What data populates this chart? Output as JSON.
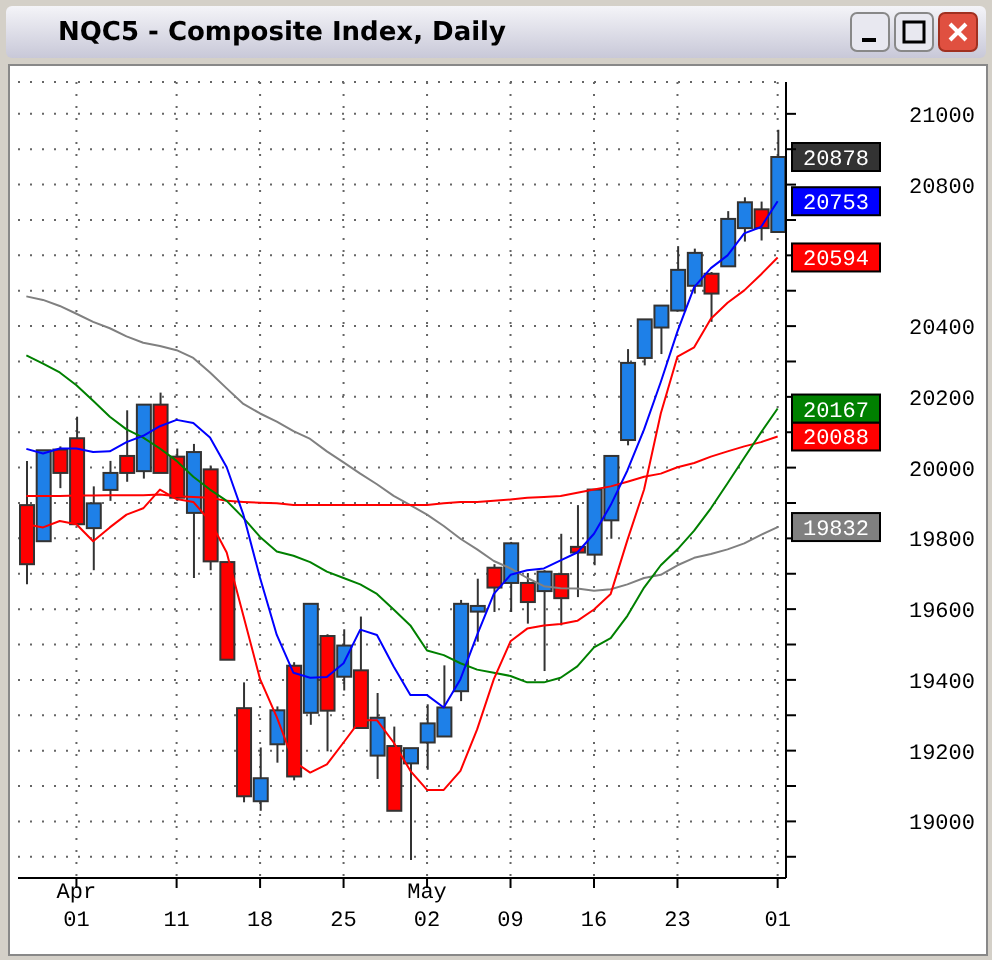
{
  "chart_data": {
    "type": "candlestick",
    "title": "NQC5 - Composite Index, Daily",
    "categories": [
      null,
      null,
      null,
      "Apr\n01",
      null,
      null,
      null,
      null,
      null,
      "11",
      null,
      null,
      null,
      null,
      "18",
      null,
      null,
      null,
      null,
      "25",
      null,
      null,
      null,
      null,
      "May\n02",
      null,
      null,
      null,
      null,
      "09",
      null,
      null,
      null,
      null,
      "16",
      null,
      null,
      null,
      null,
      "23",
      null,
      null,
      null,
      null,
      null,
      "01"
    ],
    "ohlc": [
      [
        19894,
        20019,
        19670,
        19727
      ],
      [
        19792,
        20049,
        19792,
        20049
      ],
      [
        20051,
        20060,
        19942,
        19985
      ],
      [
        20083,
        20144,
        19840,
        19840
      ],
      [
        19829,
        19947,
        19710,
        19899
      ],
      [
        19937,
        20019,
        19906,
        19985
      ],
      [
        20033,
        20162,
        19960,
        19985
      ],
      [
        19990,
        20178,
        19969,
        20178
      ],
      [
        20178,
        20212,
        19985,
        19985
      ],
      [
        20031,
        20054,
        19906,
        19915
      ],
      [
        19872,
        20067,
        19688,
        20044
      ],
      [
        19995,
        20006,
        19710,
        19735
      ],
      [
        19733,
        19733,
        19457,
        19457
      ],
      [
        19320,
        19393,
        19054,
        19071
      ],
      [
        19057,
        19209,
        19030,
        19122
      ],
      [
        19218,
        19325,
        19166,
        19314
      ],
      [
        19440,
        19450,
        19116,
        19127
      ],
      [
        19307,
        19615,
        19273,
        19615
      ],
      [
        19524,
        19529,
        19198,
        19313
      ],
      [
        19409,
        19543,
        19370,
        19497
      ],
      [
        19427,
        19579,
        19264,
        19264
      ],
      [
        19186,
        19363,
        19120,
        19293
      ],
      [
        19213,
        19268,
        19030,
        19030
      ],
      [
        19164,
        19207,
        18891,
        19207
      ],
      [
        19223,
        19331,
        19146,
        19277
      ],
      [
        19240,
        19441,
        19240,
        19322
      ],
      [
        19368,
        19626,
        19340,
        19615
      ],
      [
        19593,
        19686,
        19508,
        19609
      ],
      [
        19717,
        19727,
        19592,
        19661
      ],
      [
        19674,
        19790,
        19592,
        19786
      ],
      [
        19674,
        19702,
        19559,
        19620
      ],
      [
        19651,
        19710,
        19425,
        19706
      ],
      [
        19699,
        19813,
        19554,
        19631
      ],
      [
        19776,
        19894,
        19634,
        19760
      ],
      [
        19754,
        19938,
        19724,
        19938
      ],
      [
        19851,
        20033,
        19799,
        20033
      ],
      [
        20078,
        20335,
        20063,
        20296
      ],
      [
        20310,
        20419,
        20289,
        20419
      ],
      [
        20396,
        20458,
        20321,
        20458
      ],
      [
        20444,
        20626,
        20444,
        20559
      ],
      [
        20514,
        20619,
        20492,
        20607
      ],
      [
        20548,
        20553,
        20412,
        20492
      ],
      [
        20569,
        20725,
        20569,
        20703
      ],
      [
        20677,
        20764,
        20639,
        20750
      ],
      [
        20730,
        20752,
        20642,
        20677
      ],
      [
        20666,
        20955,
        20666,
        20878
      ]
    ],
    "colors": [
      "#ff0000",
      "#1e80e8",
      "#ff0000",
      "#ff0000",
      "#1e80e8",
      "#1e80e8",
      "#ff0000",
      "#1e80e8",
      "#ff0000",
      "#ff0000",
      "#1e80e8",
      "#ff0000",
      "#ff0000",
      "#ff0000",
      "#1e80e8",
      "#1e80e8",
      "#ff0000",
      "#1e80e8",
      "#ff0000",
      "#1e80e8",
      "#ff0000",
      "#1e80e8",
      "#ff0000",
      "#1e80e8",
      "#1e80e8",
      "#1e80e8",
      "#1e80e8",
      "#1e80e8",
      "#ff0000",
      "#1e80e8",
      "#ff0000",
      "#1e80e8",
      "#ff0000",
      "#ff0000",
      "#1e80e8",
      "#1e80e8",
      "#1e80e8",
      "#1e80e8",
      "#1e80e8",
      "#1e80e8",
      "#1e80e8",
      "#ff0000",
      "#1e80e8",
      "#1e80e8",
      "#ff0000",
      "#1e80e8"
    ],
    "value_labels": [
      null,
      null,
      null,
      null,
      null,
      null,
      null,
      null,
      null,
      null,
      null,
      null,
      null,
      null,
      null,
      null,
      null,
      null,
      null,
      null,
      null,
      null,
      null,
      null,
      null,
      null,
      null,
      null,
      null,
      null,
      null,
      null,
      null,
      null,
      null,
      null,
      null,
      null,
      null,
      null,
      null,
      null,
      null,
      null,
      null,
      "20878"
    ],
    "series": [
      {
        "type": "line",
        "color": "#808080",
        "values": [
          20484,
          20474,
          20457,
          20435,
          20412,
          20394,
          20371,
          20353,
          20344,
          20332,
          20310,
          20269,
          20224,
          20180,
          20153,
          20130,
          20103,
          20081,
          20046,
          20015,
          19983,
          19953,
          19920,
          19894,
          19867,
          19835,
          19799,
          19769,
          19736,
          19715,
          19688,
          19665,
          19659,
          19658,
          19652,
          19656,
          19670,
          19688,
          19697,
          19724,
          19745,
          19756,
          19769,
          19786,
          19810,
          19832
        ],
        "value_labels": [
          null,
          null,
          null,
          null,
          null,
          null,
          null,
          null,
          null,
          null,
          null,
          null,
          null,
          null,
          null,
          null,
          null,
          null,
          null,
          null,
          null,
          null,
          null,
          null,
          null,
          null,
          null,
          null,
          null,
          null,
          null,
          null,
          null,
          null,
          null,
          null,
          null,
          null,
          null,
          null,
          null,
          null,
          null,
          null,
          null,
          "19832"
        ]
      },
      {
        "type": "line",
        "color": "#ff0000",
        "values": [
          19920,
          19920,
          19920,
          19921,
          19921,
          19922,
          19922,
          19922,
          19924,
          19919,
          19917,
          19915,
          19906,
          19903,
          19901,
          19899,
          19894,
          19894,
          19894,
          19894,
          19894,
          19894,
          19894,
          19894,
          19894,
          19899,
          19903,
          19903,
          19906,
          19910,
          19915,
          19917,
          19920,
          19929,
          19938,
          19947,
          19960,
          19974,
          19983,
          20001,
          20013,
          20031,
          20046,
          20060,
          20072,
          20088
        ],
        "value_labels": [
          null,
          null,
          null,
          null,
          null,
          null,
          null,
          null,
          null,
          null,
          null,
          null,
          null,
          null,
          null,
          null,
          null,
          null,
          null,
          null,
          null,
          null,
          null,
          null,
          null,
          null,
          null,
          null,
          null,
          null,
          null,
          null,
          null,
          null,
          null,
          null,
          null,
          null,
          null,
          null,
          null,
          null,
          null,
          null,
          null,
          "20088"
        ]
      },
      {
        "type": "line",
        "color": "#008000",
        "values": [
          20317,
          20294,
          20269,
          20233,
          20189,
          20144,
          20108,
          20085,
          20054,
          20019,
          19974,
          19938,
          19906,
          19858,
          19804,
          19763,
          19751,
          19733,
          19706,
          19688,
          19670,
          19643,
          19599,
          19554,
          19483,
          19470,
          19447,
          19429,
          19420,
          19411,
          19393,
          19393,
          19406,
          19438,
          19492,
          19518,
          19581,
          19661,
          19724,
          19769,
          19822,
          19885,
          19956,
          20028,
          20099,
          20167
        ],
        "value_labels": [
          null,
          null,
          null,
          null,
          null,
          null,
          null,
          null,
          null,
          null,
          null,
          null,
          null,
          null,
          null,
          null,
          null,
          null,
          null,
          null,
          null,
          null,
          null,
          null,
          null,
          null,
          null,
          null,
          null,
          null,
          null,
          null,
          null,
          null,
          null,
          null,
          null,
          null,
          null,
          null,
          null,
          null,
          null,
          null,
          null,
          "20167"
        ]
      },
      {
        "type": "line",
        "color": "#ff0000",
        "values": [
          19840,
          19831,
          19849,
          19840,
          19792,
          19831,
          19867,
          19885,
          19938,
          19911,
          19903,
          19849,
          19760,
          19581,
          19402,
          19295,
          19170,
          19138,
          19161,
          19223,
          19286,
          19286,
          19223,
          19143,
          19089,
          19089,
          19143,
          19260,
          19402,
          19509,
          19545,
          19554,
          19558,
          19567,
          19599,
          19643,
          19795,
          19938,
          20153,
          20314,
          20340,
          20421,
          20466,
          20501,
          20546,
          20594
        ],
        "value_labels": [
          null,
          null,
          null,
          null,
          null,
          null,
          null,
          null,
          null,
          null,
          null,
          null,
          null,
          null,
          null,
          null,
          null,
          null,
          null,
          null,
          null,
          null,
          null,
          null,
          null,
          null,
          null,
          null,
          null,
          null,
          null,
          null,
          null,
          null,
          null,
          null,
          null,
          null,
          null,
          null,
          null,
          null,
          null,
          null,
          null,
          "20594"
        ]
      },
      {
        "type": "line",
        "color": "#0000ff",
        "values": [
          20053,
          20040,
          20054,
          20054,
          20044,
          20046,
          20072,
          20090,
          20117,
          20135,
          20126,
          20085,
          20001,
          19867,
          19688,
          19527,
          19420,
          19406,
          19408,
          19447,
          19542,
          19527,
          19438,
          19357,
          19357,
          19322,
          19402,
          19527,
          19643,
          19697,
          19710,
          19715,
          19738,
          19760,
          19813,
          19894,
          19992,
          20108,
          20242,
          20385,
          20510,
          20564,
          20600,
          20662,
          20680,
          20753
        ],
        "value_labels": [
          null,
          null,
          null,
          null,
          null,
          null,
          null,
          null,
          null,
          null,
          null,
          null,
          null,
          null,
          null,
          null,
          null,
          null,
          null,
          null,
          null,
          null,
          null,
          null,
          null,
          null,
          null,
          null,
          null,
          null,
          null,
          null,
          null,
          null,
          null,
          null,
          null,
          null,
          null,
          null,
          null,
          null,
          null,
          null,
          null,
          "20753"
        ]
      }
    ],
    "ylim": [
      18840,
      21090
    ],
    "yticks": [
      {
        "value": 18900,
        "label": null
      },
      19000,
      {
        "value": 19100,
        "label": null
      },
      19200,
      {
        "value": 19300,
        "label": null
      },
      19400,
      {
        "value": 19500,
        "label": null
      },
      19600,
      {
        "value": 19700,
        "label": null
      },
      19800,
      {
        "value": 19900,
        "label": null
      },
      20000,
      {
        "value": 20100,
        "label": null
      },
      20200,
      {
        "value": 20300,
        "label": null
      },
      20400,
      {
        "value": 20500,
        "label": null
      },
      {
        "value": 20600,
        "label": null
      },
      {
        "value": 20700,
        "label": null
      },
      20800,
      {
        "value": 20900,
        "label": null
      },
      21000
    ],
    "grid": true,
    "legend": false,
    "marker": "none",
    "line_style": "solid"
  }
}
